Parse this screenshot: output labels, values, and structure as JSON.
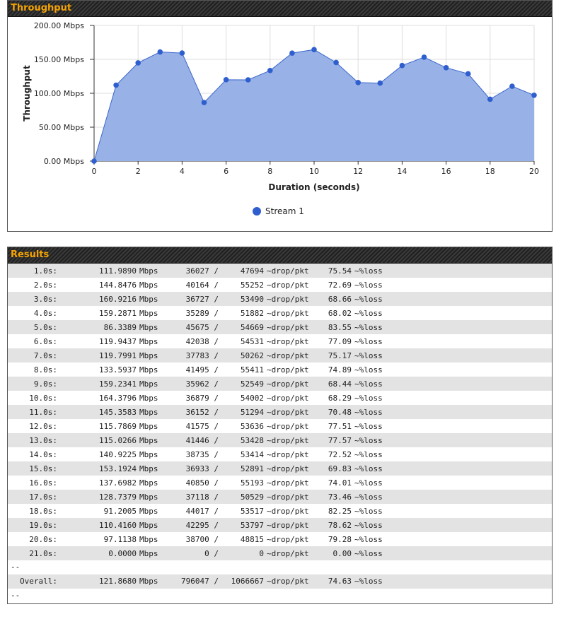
{
  "throughput_panel": {
    "title": "Throughput"
  },
  "results_panel": {
    "title": "Results",
    "separator": "--"
  },
  "colors": {
    "fill": "#98b1e6",
    "line": "#3a67cc",
    "marker": "#2f5fcf",
    "header_text": "#f5a300"
  },
  "chart_data": {
    "type": "area",
    "title": "",
    "xlabel": "Duration (seconds)",
    "ylabel": "Throughput",
    "xlim": [
      0,
      20
    ],
    "ylim": [
      0,
      200
    ],
    "xticks": [
      "0",
      "2",
      "4",
      "6",
      "8",
      "10",
      "12",
      "14",
      "16",
      "18",
      "20"
    ],
    "yticks": [
      "0.00 Mbps",
      "50.00 Mbps",
      "100.00 Mbps",
      "150.00 Mbps",
      "200.00 Mbps"
    ],
    "grid": true,
    "legend_position": "bottom-center",
    "series": [
      {
        "name": "Stream 1",
        "x": [
          0,
          1,
          2,
          3,
          4,
          5,
          6,
          7,
          8,
          9,
          10,
          11,
          12,
          13,
          14,
          15,
          16,
          17,
          18,
          19,
          20
        ],
        "values": [
          0,
          111.989,
          144.8476,
          160.9216,
          159.2871,
          86.3389,
          119.9437,
          119.7991,
          133.5937,
          159.2341,
          164.3796,
          145.3583,
          115.7869,
          115.0266,
          140.9225,
          153.1924,
          137.6982,
          128.7379,
          91.2005,
          110.416,
          97.1138
        ]
      }
    ]
  },
  "results": {
    "unit": "Mbps",
    "drop_label": "~drop/pkt",
    "loss_label": "~%loss",
    "rows": [
      {
        "time": "1.0s:",
        "mbps": "111.9890",
        "drop": "36027 /",
        "pkt": "47694",
        "loss": "75.54"
      },
      {
        "time": "2.0s:",
        "mbps": "144.8476",
        "drop": "40164 /",
        "pkt": "55252",
        "loss": "72.69"
      },
      {
        "time": "3.0s:",
        "mbps": "160.9216",
        "drop": "36727 /",
        "pkt": "53490",
        "loss": "68.66"
      },
      {
        "time": "4.0s:",
        "mbps": "159.2871",
        "drop": "35289 /",
        "pkt": "51882",
        "loss": "68.02"
      },
      {
        "time": "5.0s:",
        "mbps": "86.3389",
        "drop": "45675 /",
        "pkt": "54669",
        "loss": "83.55"
      },
      {
        "time": "6.0s:",
        "mbps": "119.9437",
        "drop": "42038 /",
        "pkt": "54531",
        "loss": "77.09"
      },
      {
        "time": "7.0s:",
        "mbps": "119.7991",
        "drop": "37783 /",
        "pkt": "50262",
        "loss": "75.17"
      },
      {
        "time": "8.0s:",
        "mbps": "133.5937",
        "drop": "41495 /",
        "pkt": "55411",
        "loss": "74.89"
      },
      {
        "time": "9.0s:",
        "mbps": "159.2341",
        "drop": "35962 /",
        "pkt": "52549",
        "loss": "68.44"
      },
      {
        "time": "10.0s:",
        "mbps": "164.3796",
        "drop": "36879 /",
        "pkt": "54002",
        "loss": "68.29"
      },
      {
        "time": "11.0s:",
        "mbps": "145.3583",
        "drop": "36152 /",
        "pkt": "51294",
        "loss": "70.48"
      },
      {
        "time": "12.0s:",
        "mbps": "115.7869",
        "drop": "41575 /",
        "pkt": "53636",
        "loss": "77.51"
      },
      {
        "time": "13.0s:",
        "mbps": "115.0266",
        "drop": "41446 /",
        "pkt": "53428",
        "loss": "77.57"
      },
      {
        "time": "14.0s:",
        "mbps": "140.9225",
        "drop": "38735 /",
        "pkt": "53414",
        "loss": "72.52"
      },
      {
        "time": "15.0s:",
        "mbps": "153.1924",
        "drop": "36933 /",
        "pkt": "52891",
        "loss": "69.83"
      },
      {
        "time": "16.0s:",
        "mbps": "137.6982",
        "drop": "40850 /",
        "pkt": "55193",
        "loss": "74.01"
      },
      {
        "time": "17.0s:",
        "mbps": "128.7379",
        "drop": "37118 /",
        "pkt": "50529",
        "loss": "73.46"
      },
      {
        "time": "18.0s:",
        "mbps": "91.2005",
        "drop": "44017 /",
        "pkt": "53517",
        "loss": "82.25"
      },
      {
        "time": "19.0s:",
        "mbps": "110.4160",
        "drop": "42295 /",
        "pkt": "53797",
        "loss": "78.62"
      },
      {
        "time": "20.0s:",
        "mbps": "97.1138",
        "drop": "38700 /",
        "pkt": "48815",
        "loss": "79.28"
      },
      {
        "time": "21.0s:",
        "mbps": "0.0000",
        "drop": "0 /",
        "pkt": "0",
        "loss": "0.00"
      }
    ],
    "overall": {
      "label": "Overall:",
      "mbps": "121.8680",
      "drop": "796047 /",
      "pkt": "1066667",
      "loss": "74.63"
    }
  }
}
